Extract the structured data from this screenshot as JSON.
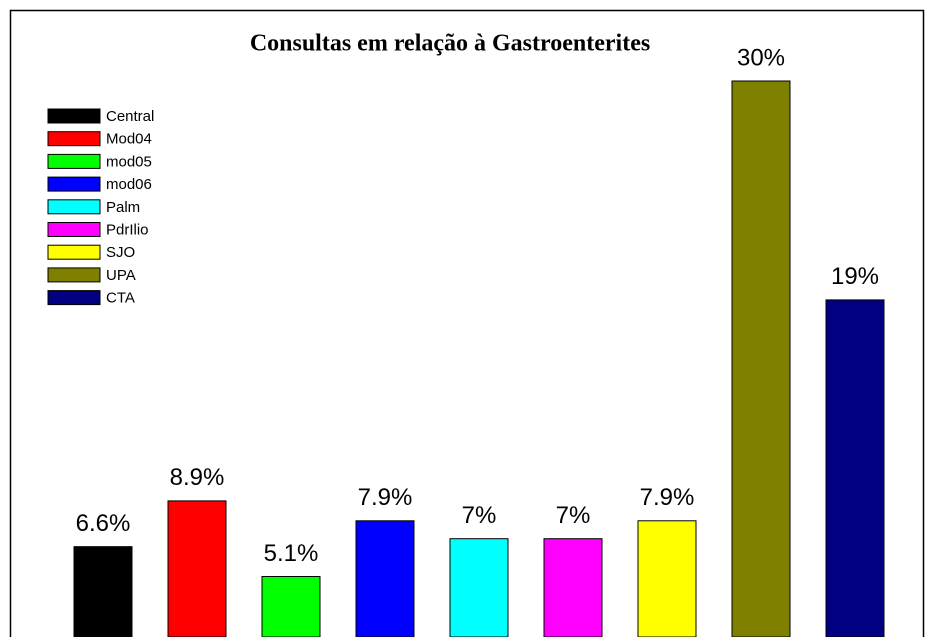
{
  "chart_data": {
    "type": "bar",
    "title": "Consultas em relação à Gastroenterites",
    "categories": [
      "Central",
      "Mod04",
      "mod05",
      "mod06",
      "Palm",
      "PdrIlio",
      "SJO",
      "UPA",
      "CTA"
    ],
    "values": [
      6.6,
      8.9,
      5.1,
      7.9,
      7,
      7,
      7.9,
      30,
      19
    ],
    "value_labels": [
      "6.6%",
      "8.9%",
      "5.1%",
      "7.9%",
      "7%",
      "7%",
      "7.9%",
      "30%",
      "19%"
    ],
    "colors": [
      "#000000",
      "#ff0000",
      "#00ff00",
      "#0000ff",
      "#00ffff",
      "#ff00ff",
      "#ffff00",
      "#808000",
      "#000080"
    ],
    "legend": "upper left"
  }
}
